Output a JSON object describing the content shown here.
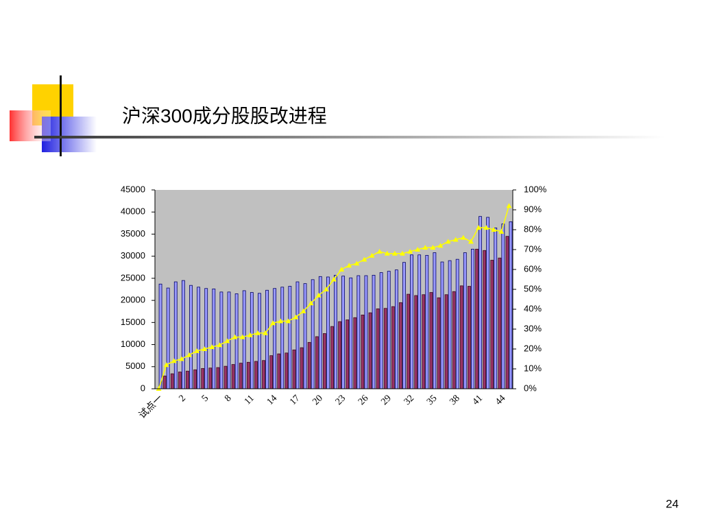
{
  "chart_data": {
    "type": "bar-line",
    "title": "沪深300成分股股改进程",
    "page_number": "24",
    "categories": [
      "试点一",
      null,
      null,
      "2",
      null,
      null,
      "5",
      null,
      null,
      "8",
      null,
      null,
      "11",
      null,
      null,
      "14",
      null,
      null,
      "17",
      null,
      null,
      "20",
      null,
      null,
      "23",
      null,
      null,
      "26",
      null,
      null,
      "29",
      null,
      null,
      "32",
      null,
      null,
      "35",
      null,
      null,
      "38",
      null,
      null,
      "41",
      null,
      null,
      "44",
      null
    ],
    "series": [
      {
        "name": "blue",
        "color": "#9999ff",
        "values": [
          23700,
          22800,
          24200,
          24500,
          23400,
          23000,
          22700,
          22600,
          21900,
          21900,
          21500,
          22200,
          21800,
          21600,
          22300,
          22700,
          23000,
          23200,
          24200,
          23800,
          24700,
          25400,
          25300,
          25700,
          25500,
          25100,
          25600,
          25600,
          25700,
          26300,
          26600,
          26900,
          28600,
          30300,
          30300,
          30200,
          30800,
          28700,
          29000,
          29300,
          30800,
          31600,
          39000,
          38800,
          36400,
          37300,
          37800
        ]
      },
      {
        "name": "red",
        "color": "#993366",
        "values": [
          0,
          2900,
          3400,
          3800,
          4000,
          4300,
          4600,
          4700,
          4800,
          5100,
          5500,
          5800,
          6000,
          6200,
          6400,
          7500,
          7900,
          8100,
          8800,
          9300,
          10500,
          11800,
          12500,
          14100,
          15200,
          15600,
          16100,
          16700,
          17200,
          18100,
          18200,
          18600,
          19500,
          21400,
          21100,
          21300,
          21800,
          20600,
          21300,
          22000,
          23300,
          23200,
          31600,
          31300,
          29100,
          29600,
          34500
        ]
      },
      {
        "name": "ratio",
        "color": "#ffff00",
        "axis": "y2",
        "values": [
          0,
          12,
          14,
          15,
          17,
          19,
          20,
          21,
          22,
          24,
          26,
          26,
          27,
          28,
          28,
          33,
          34,
          34,
          36,
          39,
          43,
          47,
          50,
          55,
          60,
          62,
          63,
          65,
          67,
          69,
          68,
          68,
          68,
          69,
          70,
          71,
          71,
          72,
          74,
          75,
          76,
          74,
          81,
          81,
          80,
          79,
          92
        ]
      }
    ],
    "ylim": [
      0,
      45000
    ],
    "yticks": [
      0,
      5000,
      10000,
      15000,
      20000,
      25000,
      30000,
      35000,
      40000,
      45000
    ],
    "y2lim": [
      0,
      100
    ],
    "y2ticks": [
      {
        "value": 0,
        "label": "0%"
      },
      {
        "value": 10,
        "label": "10%"
      },
      {
        "value": 20,
        "label": "20%"
      },
      {
        "value": 30,
        "label": "30%"
      },
      {
        "value": 40,
        "label": "40%"
      },
      {
        "value": 50,
        "label": "50%"
      },
      {
        "value": 60,
        "label": "60%"
      },
      {
        "value": 70,
        "label": "70%"
      },
      {
        "value": 80,
        "label": "80%"
      },
      {
        "value": 90,
        "label": "90%"
      },
      {
        "value": 100,
        "label": "100%"
      }
    ],
    "plot_background": "#c0c0c0"
  }
}
